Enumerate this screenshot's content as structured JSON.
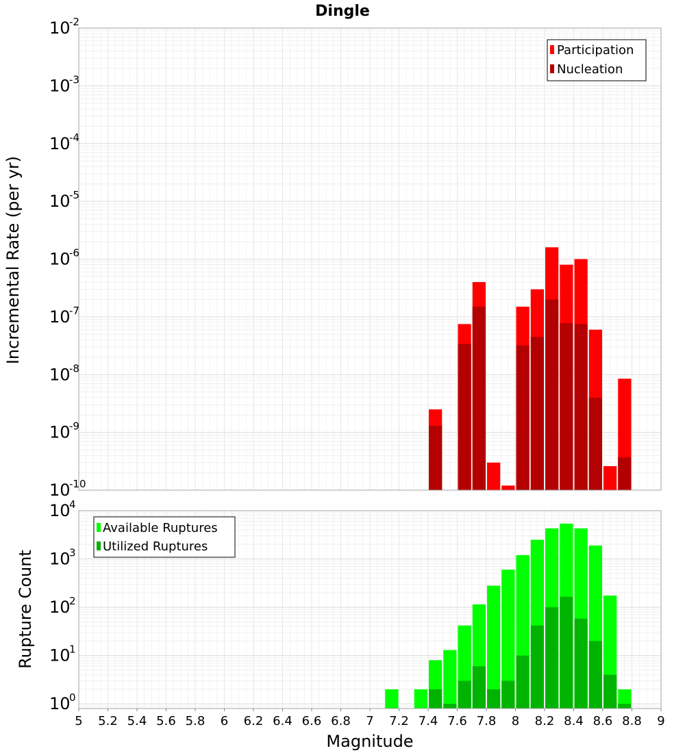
{
  "chart_data": [
    {
      "type": "bar",
      "title": "Dingle",
      "xlabel": "",
      "ylabel": "Incremental Rate (per yr)",
      "yscale": "log",
      "ylim": [
        1e-10,
        0.01
      ],
      "xlim": [
        5,
        9
      ],
      "grid": true,
      "legend_position": "top-right",
      "bin_width": 0.1,
      "y_ticks": [
        {
          "base": "10",
          "exp": "-2"
        },
        {
          "base": "10",
          "exp": "-3"
        },
        {
          "base": "10",
          "exp": "-4"
        },
        {
          "base": "10",
          "exp": "-5"
        },
        {
          "base": "10",
          "exp": "-6"
        },
        {
          "base": "10",
          "exp": "-7"
        },
        {
          "base": "10",
          "exp": "-8"
        },
        {
          "base": "10",
          "exp": "-9"
        },
        {
          "base": "10",
          "exp": "-10"
        }
      ],
      "series": [
        {
          "name": "Participation",
          "color": "#ff0000",
          "x": [
            7.45,
            7.65,
            7.75,
            7.85,
            7.95,
            8.05,
            8.15,
            8.25,
            8.35,
            8.45,
            8.55,
            8.65,
            8.75
          ],
          "values": [
            2.5e-09,
            7.5e-08,
            4e-07,
            3e-10,
            1.2e-10,
            1.5e-07,
            3e-07,
            1.6e-06,
            8e-07,
            1e-06,
            6e-08,
            2.6e-10,
            8.5e-09
          ]
        },
        {
          "name": "Nucleation",
          "color": "#b30000",
          "x": [
            7.45,
            7.65,
            7.75,
            8.05,
            8.15,
            8.25,
            8.35,
            8.45,
            8.55,
            8.75
          ],
          "values": [
            1.3e-09,
            3.4e-08,
            1.5e-07,
            3.2e-08,
            4.5e-08,
            2e-07,
            7.8e-08,
            7.5e-08,
            4e-09,
            3.7e-10
          ]
        }
      ]
    },
    {
      "type": "bar",
      "title": "",
      "xlabel": "Magnitude",
      "ylabel": "Rupture Count",
      "yscale": "log",
      "ylim": [
        0.8,
        10000
      ],
      "xlim": [
        5,
        9
      ],
      "grid": true,
      "legend_position": "top-left",
      "bin_width": 0.1,
      "x_ticks": [
        "5",
        "5.2",
        "5.4",
        "5.6",
        "5.8",
        "6",
        "6.2",
        "6.4",
        "6.6",
        "6.8",
        "7",
        "7.2",
        "7.4",
        "7.6",
        "7.8",
        "8",
        "8.2",
        "8.4",
        "8.6",
        "8.8",
        "9"
      ],
      "y_ticks": [
        {
          "base": "10",
          "exp": "4"
        },
        {
          "base": "10",
          "exp": "3"
        },
        {
          "base": "10",
          "exp": "2"
        },
        {
          "base": "10",
          "exp": "1"
        },
        {
          "base": "10",
          "exp": "0"
        }
      ],
      "series": [
        {
          "name": "Available Ruptures",
          "color": "#00ff00",
          "x": [
            7.15,
            7.35,
            7.45,
            7.55,
            7.65,
            7.75,
            7.85,
            7.95,
            8.05,
            8.15,
            8.25,
            8.35,
            8.45,
            8.55,
            8.65,
            8.75
          ],
          "values": [
            2,
            2,
            8,
            13,
            42,
            115,
            280,
            600,
            1200,
            2500,
            4300,
            5400,
            4300,
            1900,
            175,
            2
          ]
        },
        {
          "name": "Utilized Ruptures",
          "color": "#00b300",
          "x": [
            7.45,
            7.55,
            7.65,
            7.75,
            7.85,
            7.95,
            8.05,
            8.15,
            8.25,
            8.35,
            8.45,
            8.55,
            8.65,
            8.75
          ],
          "values": [
            2,
            1,
            3,
            6,
            2,
            3,
            10,
            42,
            100,
            165,
            58,
            20,
            4,
            1
          ]
        }
      ]
    }
  ]
}
